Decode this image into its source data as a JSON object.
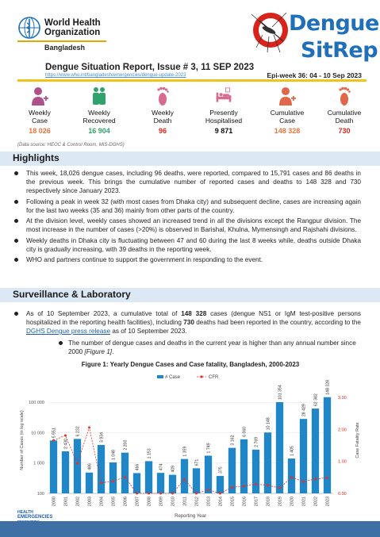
{
  "header": {
    "org_line1": "World Health",
    "org_line2": "Organization",
    "country": "Bangladesh",
    "logo_word1": "Dengue",
    "logo_word2": "SitRep",
    "report_title_lead": "Dengue Situation Report, Issue # 3,",
    "report_title_date": "11 SEP 2023",
    "report_link": "https://www.who.int/bangladesh/emergencies/dengue-update-2023",
    "epi_week": "Epi-week 36: 04 - 10 Sep 2023"
  },
  "colors": {
    "accent_yellow": "#f0c419",
    "brand_blue": "#1f70b8",
    "icon_purple": "#b0508a",
    "icon_green": "#2fa36b",
    "icon_pink": "#d86a8e",
    "icon_orange": "#e0674a",
    "value_orange": "#e8743b",
    "value_green": "#2fa36b",
    "value_red": "#d9241c",
    "bar_blue": "#1f86c8",
    "cfr_red": "#e0342c"
  },
  "stats": [
    {
      "label1": "Weekly",
      "label2": "Case",
      "value": "18 026",
      "icon": "person-plus-icon",
      "color": "#e8743b"
    },
    {
      "label1": "Weekly",
      "label2": "Recovered",
      "value": "16 904",
      "icon": "recovered-people-icon",
      "color": "#2fa36b"
    },
    {
      "label1": "Weekly",
      "label2": "Death",
      "value": "96",
      "icon": "footprint-icon",
      "color": "#d9241c"
    },
    {
      "label1": "Presently",
      "label2": "Hospitalised",
      "value": "9 871",
      "icon": "hospital-bed-icon",
      "color": "#111111"
    },
    {
      "label1": "Cumulative",
      "label2": "Case",
      "value": "148 328",
      "icon": "people-plus-icon",
      "color": "#e8743b"
    },
    {
      "label1": "Cumulative",
      "label2": "Death",
      "value": "730",
      "icon": "footprint-icon",
      "color": "#d9241c"
    }
  ],
  "data_source": "(Data source: HEOC & Control Room, MIS-DGHS)",
  "highlights": {
    "heading": "Highlights",
    "items": [
      "This week, 18,026 dengue cases, including 96 deaths, were reported, compared to 15,791 cases and 86 deaths in the previous week. This brings the cumulative number of reported cases and deaths to 148 328 and 730 respectively since January 2023.",
      "Following a peak in week 32 (with most cases from Dhaka city) and subsequent decline, cases are increasing again for the last two weeks (35 and 36) mainly from other parts of the country.",
      "At the division level, weekly cases showed an increased trend in all the divisions except the Rangpur division. The most increase in the number of cases (>20%) is observed in Barishal, Khulna, Mymensingh and Rajshahi divisions.",
      "Weekly deaths in Dhaka city is fluctuating between 47 and 60 during the last 8 weeks while, deaths outside Dhaka city is gradually increasing, with 39 deaths in the reporting week.",
      "WHO and partners continue to support the government in responding to the event."
    ]
  },
  "surveillance": {
    "heading": "Surveillance & Laboratory",
    "p_part1": "As of 10 September 2023, a cumulative total of ",
    "p_cases": "148 328",
    "p_part2": " cases (dengue NS1 or IgM test-positive persons hospitalized in the reporting health facilities), including ",
    "p_deaths": "730",
    "p_part3": " deaths had been reported in the country, according to the ",
    "p_link": "DGHS Dengue press release",
    "p_part4": " as of 10 September 2023.",
    "sub_part1": "The number of dengue cases and deaths in the current year is higher than any annual number since 2000 ",
    "sub_ref": "[Figure 1]",
    "sub_part2": "."
  },
  "chart_data": {
    "type": "bar",
    "title": "Figure 1: Yearly Dengue Cases and Case fatality, Bangladesh, 2000-2023",
    "xlabel": "Reporting Year",
    "ylabel": "Number of Cases (in log scale)",
    "y2label": "Case Fatality Rate",
    "ylim": [
      100,
      300000
    ],
    "y_scale": "log",
    "y_ticks": [
      "100",
      "1 000",
      "10 000",
      "100 000"
    ],
    "y2lim": [
      0,
      3.3
    ],
    "y2_ticks": [
      "0.00",
      "1.00",
      "2.00",
      "3.00"
    ],
    "legend": "top-center",
    "categories": [
      "2000",
      "2001",
      "2002",
      "2003",
      "2004",
      "2005",
      "2006",
      "2007",
      "2008",
      "2009",
      "2010",
      "2011",
      "2012",
      "2013",
      "2014",
      "2015",
      "2016",
      "2017",
      "2018",
      "2019",
      "2020",
      "2021",
      "2022",
      "2023"
    ],
    "series": [
      {
        "name": "# Case",
        "kind": "bar",
        "values": [
          5551,
          2430,
          6232,
          486,
          3934,
          1048,
          2200,
          466,
          1153,
          474,
          409,
          1359,
          671,
          1749,
          375,
          3162,
          6060,
          2769,
          10148,
          101354,
          1405,
          28429,
          62382,
          148328
        ],
        "labels": [
          "5 551",
          "2 430",
          "6 232",
          "486",
          "3 934",
          "1 048",
          "2 200",
          "466",
          "1 153",
          "474",
          "409",
          "1 359",
          "671",
          "1 749",
          "375",
          "3 162",
          "6 060",
          "2 769",
          "10 148",
          "101 354",
          "1 405",
          "28 429",
          "62 382",
          "148 328"
        ]
      },
      {
        "name": "CFR",
        "kind": "line",
        "values": [
          1.66,
          1.81,
          0.93,
          2.06,
          0.33,
          0.38,
          0.51,
          0.0,
          0.0,
          0.0,
          0.0,
          0.44,
          0.0,
          0.11,
          0.0,
          0.19,
          0.23,
          0.29,
          0.25,
          0.17,
          0.5,
          0.37,
          0.45,
          0.49
        ]
      }
    ]
  },
  "footer": {
    "logo_line1": "HEALTH",
    "logo_line2": "EMERGENCIES",
    "logo_line3": "programme"
  }
}
